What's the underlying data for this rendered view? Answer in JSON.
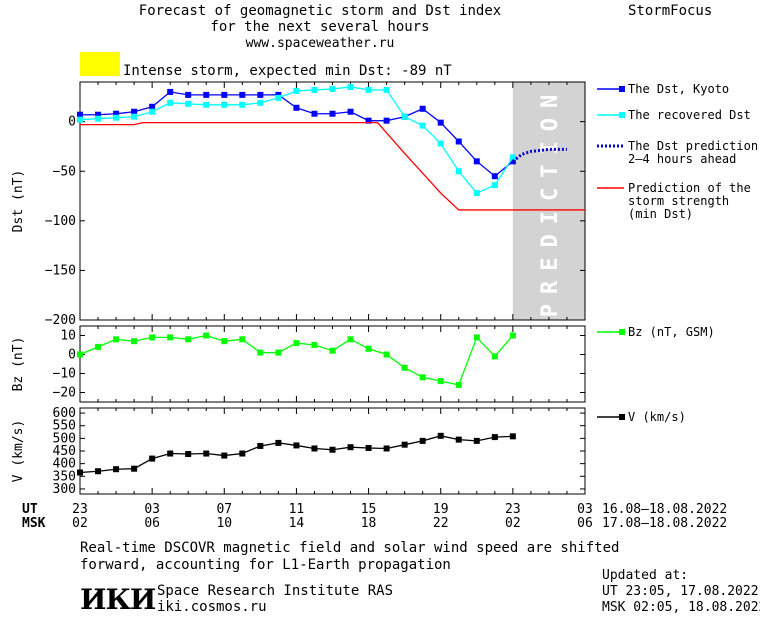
{
  "header": {
    "title_lines": [
      "Forecast of geomagnetic storm and Dst index",
      "for the next several hours",
      "www.spaceweather.ru"
    ],
    "brand": "StormFocus",
    "storm_label": "Intense storm, expected min Dst: -89 nT",
    "storm_color": "#ffff00"
  },
  "footer": {
    "note_lines": [
      "Real-time DSCOVR magnetic field and solar wind speed are shifted",
      "forward, accounting for L1-Earth propagation"
    ],
    "institute_logo": "ИКИ",
    "institute_name": "Space Research Institute RAS",
    "institute_url": "iki.cosmos.ru",
    "updated_label": "Updated at:",
    "updated_ut": "UT   23:05, 17.08.2022",
    "updated_msk": "MSK 02:05, 18.08.2022"
  },
  "time_axis": {
    "ut_label": "UT",
    "msk_label": "MSK",
    "ut_ticks": [
      "23",
      "03",
      "07",
      "11",
      "15",
      "19",
      "23",
      "03"
    ],
    "msk_ticks": [
      "02",
      "06",
      "10",
      "14",
      "18",
      "22",
      "02",
      "06"
    ],
    "ut_range": "16.08–18.08.2022",
    "msk_range": "17.08–18.08.2022"
  },
  "chart_data": [
    {
      "type": "line",
      "ylabel": "Dst (nT)",
      "ylim": [
        -200,
        40
      ],
      "yticks": [
        0,
        -50,
        -100,
        -150,
        -200
      ],
      "x_hours": [
        0,
        4,
        8,
        12,
        16,
        20,
        24,
        28
      ],
      "xlim": [
        0,
        28
      ],
      "prediction_band": [
        24,
        28
      ],
      "prediction_text": "PREDICTION",
      "series": [
        {
          "name": "The Dst, Kyoto",
          "color": "#0000ff",
          "style": "line-square",
          "x": [
            0,
            1,
            2,
            3,
            4,
            5,
            6,
            7,
            8,
            9,
            10,
            11,
            12,
            13,
            14,
            15,
            16,
            17,
            18,
            19,
            20,
            21,
            22,
            23,
            24
          ],
          "y": [
            7,
            7,
            8,
            10,
            15,
            30,
            27,
            27,
            27,
            27,
            27,
            27,
            14,
            8,
            8,
            10,
            1,
            1,
            5,
            13,
            -1,
            -20,
            -40,
            -55,
            -40
          ]
        },
        {
          "name": "The recovered Dst",
          "color": "#00ffff",
          "style": "line-square",
          "x": [
            0,
            1,
            2,
            3,
            4,
            5,
            6,
            7,
            8,
            9,
            10,
            11,
            12,
            13,
            14,
            15,
            16,
            17,
            18,
            19,
            20,
            21,
            22,
            23,
            24
          ],
          "y": [
            2,
            3,
            4,
            5,
            10,
            19,
            18,
            17,
            17,
            17,
            19,
            24,
            31,
            32,
            33,
            35,
            32,
            32,
            5,
            -4,
            -22,
            -50,
            -72,
            -64,
            -36
          ]
        },
        {
          "name": "The Dst prediction\n2–4 hours ahead",
          "color": "#0000c8",
          "style": "dotted",
          "x": [
            24,
            24.5,
            25,
            26,
            27
          ],
          "y": [
            -40,
            -33,
            -30,
            -28,
            -28
          ]
        },
        {
          "name": "Prediction of the\nstorm strength\n(min Dst)",
          "color": "#ff0000",
          "style": "line",
          "x": [
            0,
            3,
            3.5,
            16.5,
            18,
            19,
            20,
            21,
            22,
            23,
            24,
            27,
            28
          ],
          "y": [
            -3,
            -3,
            -1,
            -1,
            -32,
            -52,
            -72,
            -89,
            -89,
            -89,
            -89,
            -89,
            -89
          ]
        }
      ]
    },
    {
      "type": "line",
      "ylabel": "Bz (nT)",
      "ylim": [
        -25,
        15
      ],
      "yticks": [
        10,
        0,
        -10,
        -20
      ],
      "series": [
        {
          "name": "Bz (nT, GSM)",
          "color": "#00ff00",
          "style": "line-square",
          "x": [
            0,
            1,
            2,
            3,
            4,
            5,
            6,
            7,
            8,
            9,
            10,
            11,
            12,
            13,
            14,
            15,
            16,
            17,
            18,
            19,
            20,
            21,
            22,
            23,
            24
          ],
          "y": [
            0,
            4,
            8,
            7,
            9,
            9,
            8,
            10,
            7,
            8,
            1,
            1,
            6,
            5,
            2,
            8,
            3,
            0,
            -7,
            -12,
            -14,
            -16,
            9,
            -1,
            10
          ]
        }
      ]
    },
    {
      "type": "line",
      "ylabel": "V (km/s)",
      "ylim": [
        280,
        620
      ],
      "yticks": [
        600,
        550,
        500,
        450,
        400,
        350,
        300
      ],
      "series": [
        {
          "name": "V (km/s)",
          "color": "#000000",
          "style": "line-square",
          "x": [
            0,
            1,
            2,
            3,
            4,
            5,
            6,
            7,
            8,
            9,
            10,
            11,
            12,
            13,
            14,
            15,
            16,
            17,
            18,
            19,
            20,
            21,
            22,
            23,
            24
          ],
          "y": [
            365,
            370,
            378,
            380,
            420,
            440,
            438,
            440,
            432,
            440,
            470,
            482,
            472,
            460,
            455,
            465,
            462,
            460,
            475,
            490,
            510,
            495,
            490,
            505,
            508
          ]
        }
      ]
    }
  ]
}
